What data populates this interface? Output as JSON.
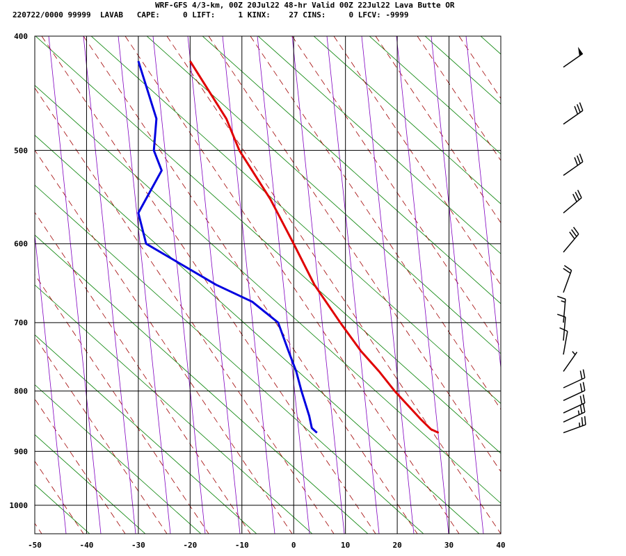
{
  "header": {
    "title": "WRF-GFS 4/3-km, 00Z 20Jul22 48-hr Valid 00Z 22Jul22 Lava Butte OR",
    "indices": "220722/0000 99999  LAVAB   CAPE:     0 LIFT:     1 KINX:    27 CINS:     0 LFCV: -9999"
  },
  "chart_data": {
    "type": "line",
    "subtype": "skew-T log-P sounding",
    "xlabel": "",
    "ylabel": "",
    "xlim": [
      -50,
      40
    ],
    "ylim": [
      1040,
      400
    ],
    "y_scale": "log",
    "x_ticks": [
      "-50",
      "-40",
      "-30",
      "-20",
      "-10",
      "0",
      "10",
      "20",
      "30",
      "40"
    ],
    "y_ticks": [
      "400",
      "500",
      "600",
      "700",
      "800",
      "900",
      "1000"
    ],
    "colors": {
      "temperature": "#e00000",
      "dewpoint": "#0000e0",
      "dry_adiabat": "#008000",
      "moist_adiabat": "#a00000",
      "mixing_ratio": "#8000c0",
      "grid": "#000000"
    },
    "series": [
      {
        "role": "temperature",
        "p": [
          868,
          862,
          845,
          800,
          770,
          740,
          700,
          650,
          600,
          550,
          500,
          470,
          420
        ],
        "t": [
          28,
          26.5,
          24.5,
          19.5,
          16.5,
          13,
          9,
          4,
          0,
          -4.5,
          -10.5,
          -13,
          -20
        ]
      },
      {
        "role": "dewpoint",
        "p": [
          868,
          860,
          840,
          800,
          770,
          740,
          700,
          672,
          650,
          600,
          565,
          520,
          500,
          470,
          420
        ],
        "t": [
          4.5,
          3.5,
          3,
          1.5,
          0.5,
          -1,
          -3,
          -8,
          -15,
          -28.5,
          -30,
          -25.5,
          -27,
          -26.5,
          -30
        ]
      }
    ],
    "wind_barbs": [
      {
        "p": 425,
        "dir": 235,
        "speed_kt": 50
      },
      {
        "p": 475,
        "dir": 235,
        "speed_kt": 30
      },
      {
        "p": 525,
        "dir": 235,
        "speed_kt": 30
      },
      {
        "p": 565,
        "dir": 230,
        "speed_kt": 30
      },
      {
        "p": 610,
        "dir": 220,
        "speed_kt": 30
      },
      {
        "p": 660,
        "dir": 200,
        "speed_kt": 20
      },
      {
        "p": 700,
        "dir": 185,
        "speed_kt": 15
      },
      {
        "p": 725,
        "dir": 185,
        "speed_kt": 10
      },
      {
        "p": 745,
        "dir": 190,
        "speed_kt": 10
      },
      {
        "p": 770,
        "dir": 215,
        "speed_kt": 5
      },
      {
        "p": 795,
        "dir": 245,
        "speed_kt": 20
      },
      {
        "p": 815,
        "dir": 245,
        "speed_kt": 20
      },
      {
        "p": 835,
        "dir": 245,
        "speed_kt": 20
      },
      {
        "p": 850,
        "dir": 245,
        "speed_kt": 25
      },
      {
        "p": 868,
        "dir": 250,
        "speed_kt": 25
      }
    ]
  }
}
